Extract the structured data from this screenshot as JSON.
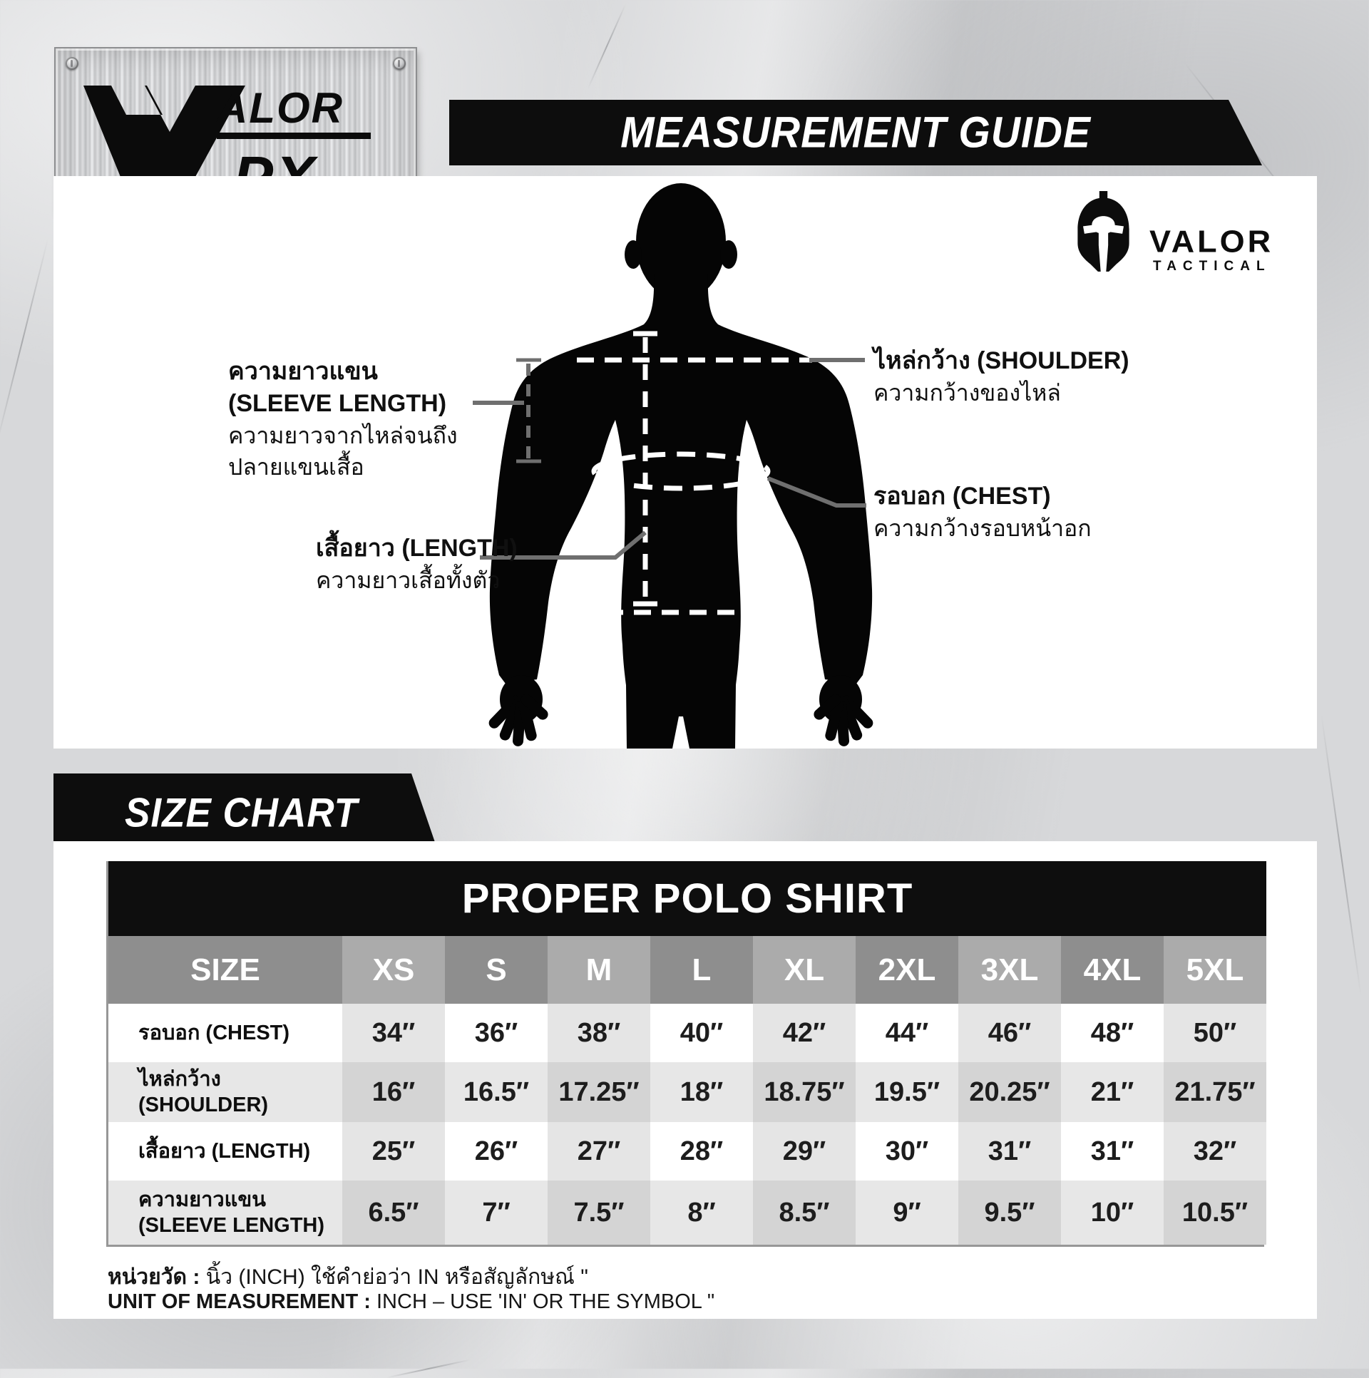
{
  "brand": {
    "plate_logo": {
      "v_glyph": "V",
      "alor": "ALOR",
      "px": "-PX"
    },
    "tactical": {
      "name": "VALOR",
      "sub": "TACTICAL"
    }
  },
  "header": {
    "title": "MEASUREMENT GUIDE"
  },
  "diagram": {
    "labels": {
      "sleeve": {
        "title_th": "ความยาวแขน",
        "title_en": "(SLEEVE LENGTH)",
        "desc_line1": "ความยาวจากไหล่จนถึง",
        "desc_line2": "ปลายแขนเสื้อ"
      },
      "length": {
        "title": "เสื้อยาว (LENGTH)",
        "desc": "ความยาวเสื้อทั้งตัว"
      },
      "shoulder": {
        "title": "ไหล่กว้าง (SHOULDER)",
        "desc": "ความกว้างของไหล่"
      },
      "chest": {
        "title": "รอบอก (CHEST)",
        "desc": "ความกว้างรอบหน้าอก"
      }
    }
  },
  "size_chart": {
    "section_title": "SIZE CHART",
    "table_title": "PROPER POLO SHIRT",
    "columns": [
      "SIZE",
      "XS",
      "S",
      "M",
      "L",
      "XL",
      "2XL",
      "3XL",
      "4XL",
      "5XL"
    ],
    "rows": [
      {
        "label": "รอบอก (CHEST)",
        "label2": "",
        "values": [
          "34″",
          "36″",
          "38″",
          "40″",
          "42″",
          "44″",
          "46″",
          "48″",
          "50″"
        ]
      },
      {
        "label": "ไหล่กว้าง (SHOULDER)",
        "label2": "",
        "values": [
          "16″",
          "16.5″",
          "17.25″",
          "18″",
          "18.75″",
          "19.5″",
          "20.25″",
          "21″",
          "21.75″"
        ]
      },
      {
        "label": "เสื้อยาว (LENGTH)",
        "label2": "",
        "values": [
          "25″",
          "26″",
          "27″",
          "28″",
          "29″",
          "30″",
          "31″",
          "31″",
          "32″"
        ]
      },
      {
        "label": "ความยาวแขน",
        "label2": "(SLEEVE LENGTH)",
        "values": [
          "6.5″",
          "7″",
          "7.5″",
          "8″",
          "8.5″",
          "9″",
          "9.5″",
          "10″",
          "10.5″"
        ]
      }
    ]
  },
  "footnotes": {
    "thai_prefix": "หน่วยวัด :",
    "thai_rest": " นิ้ว (INCH) ใช้คำย่อว่า IN หรือสัญลักษณ์ \"",
    "en_prefix": "UNIT OF MEASUREMENT :",
    "en_rest": " INCH – USE 'IN' OR THE SYMBOL \""
  },
  "colors": {
    "banner_black": "#0d0d0d",
    "panel_white": "#ffffff",
    "concrete_gray": "#d7d8da",
    "table_header_base": "#8e8e8e",
    "table_header_alt": "#ababab",
    "row_light": "#ffffff",
    "row_light_alt": "#e5e5e5",
    "row_dark": "#e7e7e7",
    "row_dark_alt": "#d4d4d4",
    "silhouette_black": "#050505",
    "annotation_gray": "#6f6f6f"
  }
}
